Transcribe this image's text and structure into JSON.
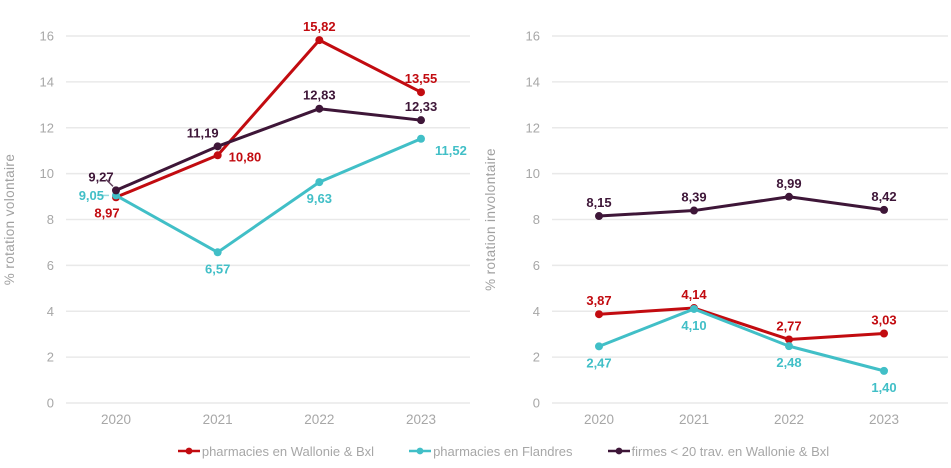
{
  "colors": {
    "red": "#C20B10",
    "cyan": "#41BFC7",
    "purple": "#3E1638",
    "grid": "#E9E9E9",
    "tick_label": "#A7A7A7",
    "axis_title": "#A0A0A0",
    "legend_text": "#A7A7A7"
  },
  "chart_data": [
    {
      "type": "line",
      "title": "",
      "ylabel": "% rotation volontaire",
      "xlabel": "",
      "x": [
        "2020",
        "2021",
        "2022",
        "2023"
      ],
      "ylim": [
        0,
        16
      ],
      "ytick_step": 2,
      "grid": true,
      "legend_position": "bottom",
      "series": [
        {
          "name": "pharmacies en Wallonie & Bxl",
          "color_key": "red",
          "values": [
            8.97,
            10.8,
            15.82,
            13.55
          ],
          "point_labels": [
            "8,97",
            "10,80",
            "15,82",
            "13,55"
          ],
          "label_pos": [
            "below-left",
            "right",
            "above",
            "above"
          ],
          "leaders": [
            false,
            false,
            false,
            false
          ]
        },
        {
          "name": "pharmacies en Flandres",
          "color_key": "cyan",
          "values": [
            9.05,
            6.57,
            9.63,
            11.52
          ],
          "point_labels": [
            "9,05",
            "6,57",
            "9,63",
            "11,52"
          ],
          "label_pos": [
            "left",
            "below",
            "below",
            "right-below"
          ],
          "leaders": [
            true,
            false,
            false,
            false
          ]
        },
        {
          "name": "firmes < 20 trav. en Wallonie & Bxl",
          "color_key": "purple",
          "values": [
            9.27,
            11.19,
            12.83,
            12.33
          ],
          "point_labels": [
            "9,27",
            "11,19",
            "12,83",
            "12,33"
          ],
          "label_pos": [
            "above-left",
            "above-left",
            "above",
            "above"
          ],
          "leaders": [
            true,
            false,
            false,
            false
          ]
        }
      ]
    },
    {
      "type": "line",
      "title": "",
      "ylabel": "% rotation involontaire",
      "xlabel": "",
      "x": [
        "2020",
        "2021",
        "2022",
        "2023"
      ],
      "ylim": [
        0,
        16
      ],
      "ytick_step": 2,
      "grid": true,
      "legend_position": "bottom",
      "series": [
        {
          "name": "pharmacies en Wallonie & Bxl",
          "color_key": "red",
          "values": [
            3.87,
            4.14,
            2.77,
            3.03
          ],
          "point_labels": [
            "3,87",
            "4,14",
            "2,77",
            "3,03"
          ],
          "label_pos": [
            "above",
            "above",
            "above",
            "above"
          ],
          "leaders": [
            false,
            false,
            false,
            false
          ]
        },
        {
          "name": "pharmacies en Flandres",
          "color_key": "cyan",
          "values": [
            2.47,
            4.1,
            2.48,
            1.4
          ],
          "point_labels": [
            "2,47",
            "4,10",
            "2,48",
            "1,40"
          ],
          "label_pos": [
            "below",
            "below",
            "below",
            "below"
          ],
          "leaders": [
            false,
            false,
            false,
            false
          ]
        },
        {
          "name": "firmes < 20 trav. en Wallonie & Bxl",
          "color_key": "purple",
          "values": [
            8.15,
            8.39,
            8.99,
            8.42
          ],
          "point_labels": [
            "8,15",
            "8,39",
            "8,99",
            "8,42"
          ],
          "label_pos": [
            "above",
            "above",
            "above",
            "above"
          ],
          "leaders": [
            false,
            false,
            false,
            false
          ]
        }
      ]
    }
  ],
  "legend": {
    "items": [
      {
        "label": "pharmacies en Wallonie & Bxl",
        "color_key": "red"
      },
      {
        "label": "pharmacies en Flandres",
        "color_key": "cyan"
      },
      {
        "label": "firmes < 20 trav. en Wallonie & Bxl",
        "color_key": "purple"
      }
    ]
  }
}
